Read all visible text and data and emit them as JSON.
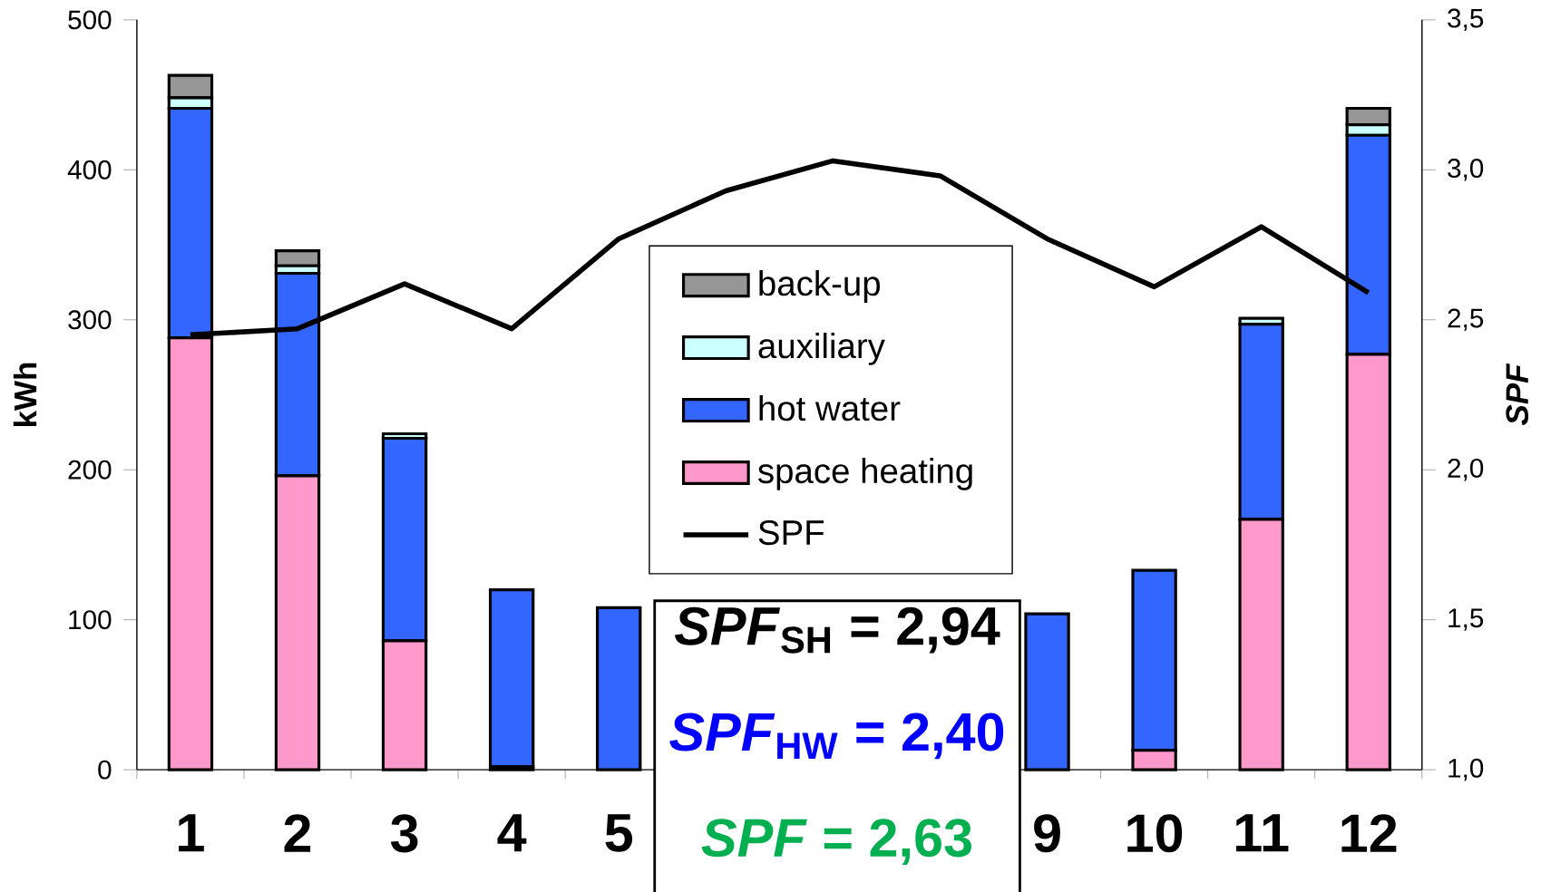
{
  "chart_data": {
    "type": "bar",
    "stacked": true,
    "categories": [
      "1",
      "2",
      "3",
      "4",
      "5",
      null,
      null,
      null,
      "9",
      "10",
      "11",
      "12"
    ],
    "series": [
      {
        "name": "space heating",
        "color": "#ff99cc",
        "values": [
          288,
          196,
          86,
          2,
          0,
          null,
          null,
          null,
          0,
          13,
          167,
          277
        ]
      },
      {
        "name": "hot water",
        "color": "#3366ff",
        "values": [
          153,
          135,
          135,
          118,
          108,
          null,
          null,
          null,
          104,
          120,
          130,
          146
        ]
      },
      {
        "name": "auxiliary",
        "color": "#ccffff",
        "values": [
          7,
          5,
          3,
          0,
          0,
          null,
          null,
          null,
          0,
          0,
          4,
          7
        ]
      },
      {
        "name": "back-up",
        "color": "#969696",
        "values": [
          15,
          10,
          0,
          0,
          0,
          null,
          null,
          null,
          0,
          0,
          0,
          11
        ]
      },
      {
        "name": "SPF",
        "type": "line",
        "axis": "y2",
        "color": "#000000",
        "line_style": "solid",
        "marker": "none",
        "values": [
          2.45,
          2.47,
          2.62,
          2.47,
          2.77,
          2.93,
          3.03,
          2.98,
          2.77,
          2.61,
          2.81,
          2.59
        ]
      }
    ],
    "ylabel": "kWh",
    "y2label": "SPF",
    "ylim": [
      0,
      500
    ],
    "yticks": [
      0,
      100,
      200,
      300,
      400,
      500
    ],
    "y2lim": [
      1.0,
      3.5
    ],
    "y2ticks": [
      {
        "value": 1.0,
        "label": "1,0"
      },
      {
        "value": 1.5,
        "label": "1,5"
      },
      {
        "value": 2.0,
        "label": "2,0"
      },
      {
        "value": 2.5,
        "label": "2,5"
      },
      {
        "value": 3.0,
        "label": "3,0"
      },
      {
        "value": 3.5,
        "label": "3,5"
      }
    ],
    "legend": "center",
    "annotations": [
      "*SPF*$_{SH}$ = 2,94",
      "*SPF*$_{HW}$ = 2,40",
      "*SPF* = 2,63"
    ]
  }
}
